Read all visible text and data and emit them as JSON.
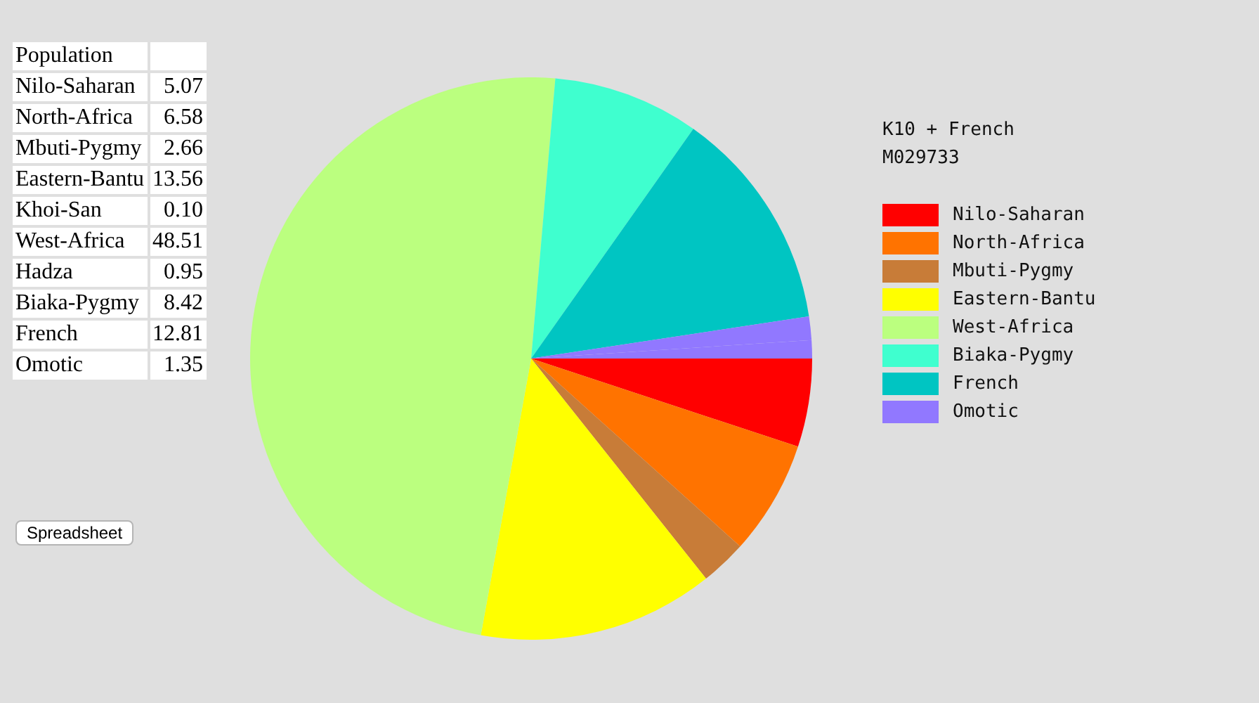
{
  "chart_data": [
    {
      "type": "other",
      "title": "Population",
      "categories": [
        "Nilo-Saharan",
        "North-Africa",
        "Mbuti-Pygmy",
        "Eastern-Bantu",
        "Khoi-San",
        "West-Africa",
        "Hadza",
        "Biaka-Pygmy",
        "French",
        "Omotic"
      ],
      "values": [
        5.07,
        6.58,
        2.66,
        13.56,
        0.1,
        48.51,
        0.95,
        8.42,
        12.81,
        1.35
      ],
      "value_labels": [
        "5.07",
        "6.58",
        "2.66",
        "13.56",
        "0.10",
        "48.51",
        "0.95",
        "8.42",
        "12.81",
        "1.35"
      ],
      "annotations": [
        "Spreadsheet"
      ]
    },
    {
      "type": "pie",
      "title": "K10 + French",
      "subtitle": "M029733",
      "categories": [
        "Nilo-Saharan",
        "North-Africa",
        "Mbuti-Pygmy",
        "Eastern-Bantu",
        "West-Africa",
        "Biaka-Pygmy",
        "French",
        "Omotic",
        null
      ],
      "values": [
        5.07,
        6.58,
        2.66,
        13.56,
        48.51,
        8.42,
        12.81,
        1.35,
        1.05
      ],
      "colors": [
        "#ff0000",
        "#ff7300",
        "#c87c38",
        "#ffff00",
        "#bbff7f",
        "#3fffcf",
        "#00c5c2",
        "#9178ff",
        "#9178ff"
      ],
      "legend": "right"
    }
  ]
}
